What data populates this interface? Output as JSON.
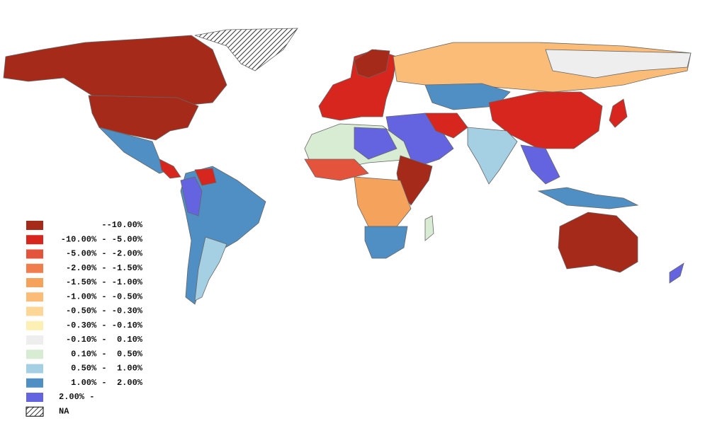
{
  "legend": {
    "items": [
      {
        "label": "--10.00%",
        "color": "#a52a1a"
      },
      {
        "label": "-10.00% - -5.00%",
        "color": "#d7261e"
      },
      {
        "label": "-5.00% - -2.00%",
        "color": "#e4543c"
      },
      {
        "label": "-2.00% - -1.50%",
        "color": "#ef7e4c"
      },
      {
        "label": "-1.50% - -1.00%",
        "color": "#f5a25c"
      },
      {
        "label": "-1.00% - -0.50%",
        "color": "#fbbc78"
      },
      {
        "label": "-0.50% - -0.30%",
        "color": "#fdd797"
      },
      {
        "label": "-0.30% - -0.10%",
        "color": "#fdf0b4"
      },
      {
        "label": "-0.10% -  0.10%",
        "color": "#eeeeee"
      },
      {
        "label": "0.10% -  0.50%",
        "color": "#d8ebd3"
      },
      {
        "label": "0.50% -  1.00%",
        "color": "#a5cfe3"
      },
      {
        "label": "1.00% -  2.00%",
        "color": "#4f8fc3"
      },
      {
        "label": "2.00% -",
        "color": "#6464e0"
      },
      {
        "label": "NA",
        "color": "hatch"
      }
    ]
  }
}
